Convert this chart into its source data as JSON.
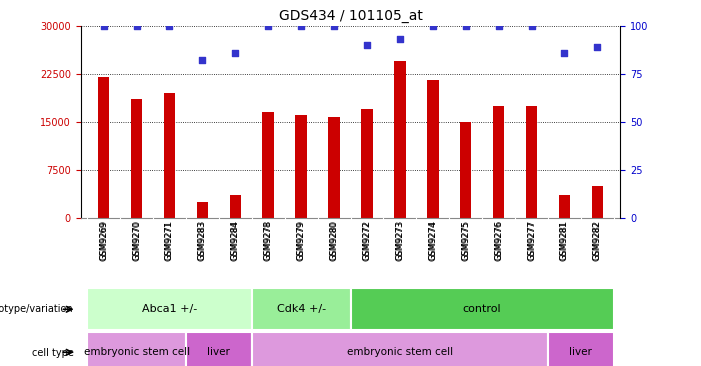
{
  "title": "GDS434 / 101105_at",
  "samples": [
    "GSM9269",
    "GSM9270",
    "GSM9271",
    "GSM9283",
    "GSM9284",
    "GSM9278",
    "GSM9279",
    "GSM9280",
    "GSM9272",
    "GSM9273",
    "GSM9274",
    "GSM9275",
    "GSM9276",
    "GSM9277",
    "GSM9281",
    "GSM9282"
  ],
  "counts": [
    22000,
    18500,
    19500,
    2500,
    3500,
    16500,
    16000,
    15800,
    17000,
    24500,
    21500,
    15000,
    17500,
    17500,
    3500,
    5000
  ],
  "percentiles": [
    100,
    100,
    100,
    82,
    86,
    100,
    100,
    100,
    90,
    93,
    100,
    100,
    100,
    100,
    86,
    89
  ],
  "bar_color": "#cc0000",
  "dot_color": "#3333cc",
  "ylim_left": [
    0,
    30000
  ],
  "ylim_right": [
    0,
    100
  ],
  "yticks_left": [
    0,
    7500,
    15000,
    22500,
    30000
  ],
  "yticks_right": [
    0,
    25,
    50,
    75,
    100
  ],
  "genotype_groups": [
    {
      "label": "Abca1 +/-",
      "start": 0,
      "end": 5,
      "color": "#ccffcc"
    },
    {
      "label": "Cdk4 +/-",
      "start": 5,
      "end": 8,
      "color": "#99ee99"
    },
    {
      "label": "control",
      "start": 8,
      "end": 16,
      "color": "#55cc55"
    }
  ],
  "celltype_groups": [
    {
      "label": "embryonic stem cell",
      "start": 0,
      "end": 3,
      "color": "#dd99dd"
    },
    {
      "label": "liver",
      "start": 3,
      "end": 5,
      "color": "#cc66cc"
    },
    {
      "label": "embryonic stem cell",
      "start": 5,
      "end": 14,
      "color": "#dd99dd"
    },
    {
      "label": "liver",
      "start": 14,
      "end": 16,
      "color": "#cc66cc"
    }
  ],
  "background_color": "#ffffff",
  "tick_label_bg": "#cccccc",
  "title_fontsize": 10,
  "bar_width": 0.35
}
